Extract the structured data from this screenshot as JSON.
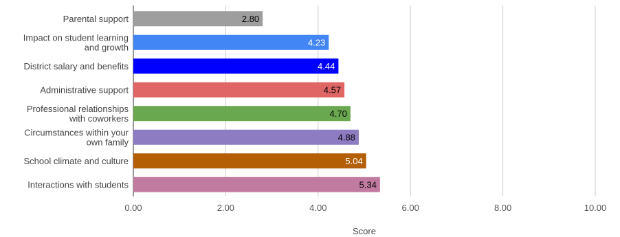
{
  "chart_data": {
    "type": "bar",
    "orientation": "horizontal",
    "categories": [
      [
        "Parental support"
      ],
      [
        "Impact on student learning",
        "and growth"
      ],
      [
        "District salary and benefits"
      ],
      [
        "Administrative support"
      ],
      [
        "Professional relationships",
        "with coworkers"
      ],
      [
        "Circumstances within your",
        "own family"
      ],
      [
        "School climate and culture"
      ],
      [
        "Interactions with students"
      ]
    ],
    "values": [
      2.8,
      4.23,
      4.44,
      4.57,
      4.7,
      4.88,
      5.04,
      5.34
    ],
    "value_labels": [
      "2.80",
      "4.23",
      "4.44",
      "4.57",
      "4.70",
      "4.88",
      "5.04",
      "5.34"
    ],
    "colors": [
      "#9e9e9e",
      "#4285f4",
      "#0000ff",
      "#e06666",
      "#6aa84f",
      "#8e7cc3",
      "#b45f06",
      "#c27ba0"
    ],
    "label_colors": [
      "#000000",
      "#ffffff",
      "#ffffff",
      "#000000",
      "#000000",
      "#000000",
      "#ffffff",
      "#000000"
    ],
    "xlim": [
      0,
      10
    ],
    "xticks": [
      0,
      2,
      4,
      6,
      8,
      10
    ],
    "xtick_labels": [
      "0.00",
      "2.00",
      "4.00",
      "6.00",
      "8.00",
      "10.00"
    ],
    "xlabel": "Score",
    "ylabel": "",
    "title": "",
    "grid": true,
    "legend": "none"
  }
}
